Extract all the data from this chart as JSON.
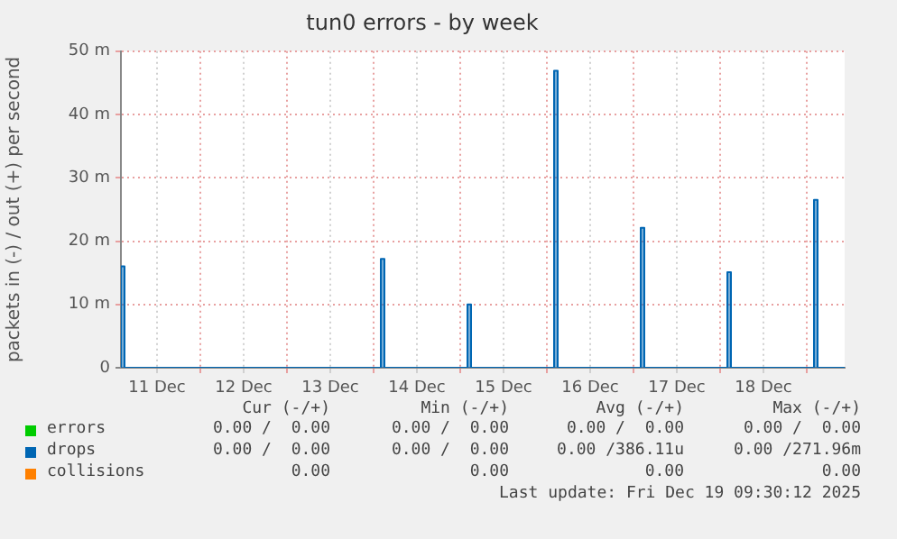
{
  "chart_data": {
    "type": "area",
    "title": "tun0 errors - by week",
    "ylabel": "packets in (-) / out (+) per second",
    "xlim": [
      "2025-12-11T02:00",
      "2025-12-19T10:30"
    ],
    "xticks": [
      {
        "value": "2025-12-11T12:00",
        "label": "11 Dec"
      },
      {
        "value": "2025-12-12T00:00",
        "label": null
      },
      {
        "value": "2025-12-12T12:00",
        "label": "12 Dec"
      },
      {
        "value": "2025-12-13T00:00",
        "label": null
      },
      {
        "value": "2025-12-13T12:00",
        "label": "13 Dec"
      },
      {
        "value": "2025-12-14T00:00",
        "label": null
      },
      {
        "value": "2025-12-14T12:00",
        "label": "14 Dec"
      },
      {
        "value": "2025-12-15T00:00",
        "label": null
      },
      {
        "value": "2025-12-15T12:00",
        "label": "15 Dec"
      },
      {
        "value": "2025-12-16T00:00",
        "label": null
      },
      {
        "value": "2025-12-16T12:00",
        "label": "16 Dec"
      },
      {
        "value": "2025-12-17T00:00",
        "label": null
      },
      {
        "value": "2025-12-17T12:00",
        "label": "17 Dec"
      },
      {
        "value": "2025-12-18T00:00",
        "label": null
      },
      {
        "value": "2025-12-18T12:00",
        "label": "18 Dec"
      },
      {
        "value": "2025-12-19T00:00",
        "label": null
      }
    ],
    "ylim": [
      0,
      50
    ],
    "yticks": [
      0,
      {
        "value": 10,
        "label": "10 m"
      },
      {
        "value": 20,
        "label": "20 m"
      },
      {
        "value": 30,
        "label": "30 m"
      },
      {
        "value": 40,
        "label": "40 m"
      },
      {
        "value": 50,
        "label": "50 m"
      }
    ],
    "grid": true,
    "legend": "bottom",
    "series": [
      {
        "name": "errors",
        "color": "#00cc00"
      },
      {
        "name": "drops",
        "color": "#0066b3",
        "x": [
          "2025-12-11T02:00",
          "2025-12-11T02:00",
          "2025-12-11T03:00",
          "2025-12-11T03:00",
          "2025-12-14T02:00",
          "2025-12-14T02:00",
          "2025-12-14T03:00",
          "2025-12-14T03:00",
          "2025-12-15T02:00",
          "2025-12-15T02:00",
          "2025-12-15T03:00",
          "2025-12-15T03:00",
          "2025-12-16T02:00",
          "2025-12-16T02:00",
          "2025-12-16T03:00",
          "2025-12-16T03:00",
          "2025-12-17T02:00",
          "2025-12-17T02:00",
          "2025-12-17T03:00",
          "2025-12-17T03:00",
          "2025-12-18T02:00",
          "2025-12-18T02:00",
          "2025-12-18T03:00",
          "2025-12-18T03:00",
          "2025-12-19T02:00",
          "2025-12-19T02:00",
          "2025-12-19T03:00",
          "2025-12-19T03:00",
          "2025-12-19T10:30"
        ],
        "values": [
          0,
          16,
          16,
          0,
          0,
          17.2,
          17.2,
          0,
          0,
          10,
          10,
          0,
          0,
          46.9,
          46.9,
          0,
          0,
          22.1,
          22.1,
          0,
          0,
          15.1,
          15.1,
          0,
          0,
          26.5,
          26.5,
          0,
          0
        ]
      },
      {
        "name": "collisions",
        "color": "#ff8000"
      }
    ],
    "annotations": [
      "Cur (-/+)",
      "Min (-/+)",
      "Avg (-/+)",
      "Max (-/+)",
      "0.00 /  0.00",
      "0.00 /  0.00",
      "0.00 /  0.00",
      "0.00 /  0.00",
      "0.00 /  0.00",
      "0.00 /  0.00",
      "0.00 /386.11u",
      "0.00 /271.96m",
      "0.00",
      "0.00",
      "0.00",
      "0.00",
      "Last update: Fri Dec 19 09:30:12 2025"
    ]
  }
}
